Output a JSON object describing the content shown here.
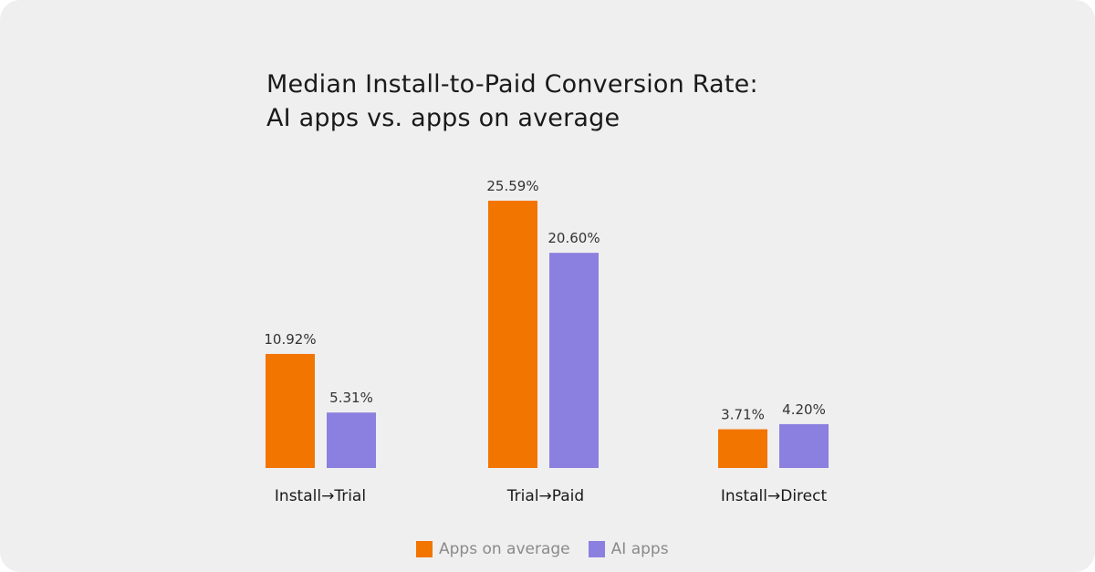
{
  "title_line1": "Median Install-to-Paid Conversion Rate:",
  "title_line2": "AI apps vs. apps on average",
  "colors": {
    "apps_on_average": "#f27500",
    "ai_apps": "#8b7fe0",
    "background": "#efefef"
  },
  "chart_data": {
    "type": "bar",
    "title": "Median Install-to-Paid Conversion Rate: AI apps vs. apps on average",
    "categories": [
      "Install→Trial",
      "Trial→Paid",
      "Install→Direct"
    ],
    "series": [
      {
        "name": "Apps on average",
        "values": [
          10.92,
          25.59,
          3.71
        ]
      },
      {
        "name": "AI apps",
        "values": [
          5.31,
          20.6,
          4.2
        ]
      }
    ],
    "data_labels": [
      [
        "10.92%",
        "25.59%",
        "3.71%"
      ],
      [
        "5.31%",
        "20.60%",
        "4.20%"
      ]
    ],
    "unit": "%",
    "xlabel": "",
    "ylabel": "",
    "grid": false,
    "legend_position": "bottom-center"
  },
  "legend": [
    {
      "label": "Apps on average"
    },
    {
      "label": "AI apps"
    }
  ]
}
